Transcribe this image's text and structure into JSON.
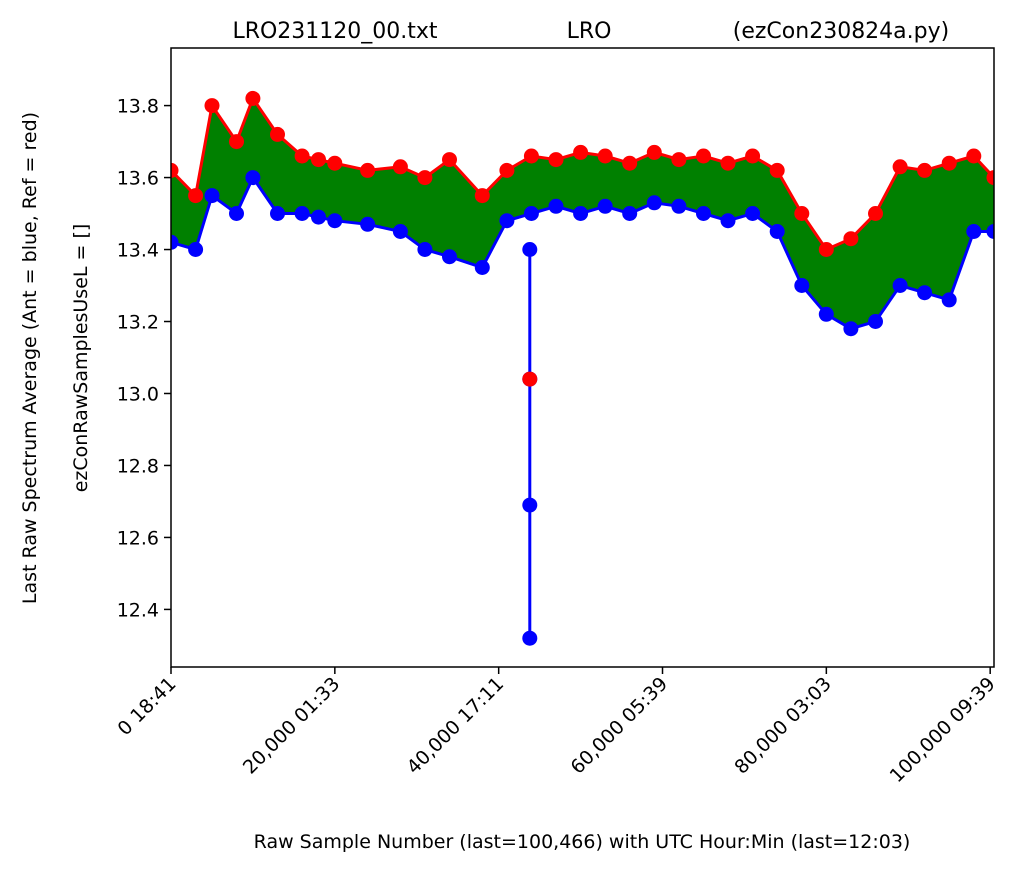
{
  "title": {
    "left": "LRO231120_00.txt",
    "center": "LRO",
    "right": "(ezCon230824a.py)"
  },
  "ylabel_outer": "Last Raw Spectrum Average   (Ant = blue, Ref = red)",
  "ylabel_inner": "ezConRawSamplesUseL = []",
  "xlabel": "Raw Sample Number (last=100,466) with UTC Hour:Min (last=12:03)",
  "colors": {
    "ant": "#0000ff",
    "ref": "#ff0000",
    "fill": "#008000"
  },
  "chart_data": {
    "type": "line",
    "xlim": [
      0,
      100466
    ],
    "ylim": [
      12.24,
      13.96
    ],
    "xticks": [
      {
        "value": 0,
        "label": "0  18:41"
      },
      {
        "value": 20000,
        "label": "20,000  01:33"
      },
      {
        "value": 40000,
        "label": "40,000  17:11"
      },
      {
        "value": 60000,
        "label": "60,000  05:39"
      },
      {
        "value": 80000,
        "label": "80,000  03:03"
      },
      {
        "value": 100000,
        "label": "100,000  09:39"
      }
    ],
    "yticks": [
      {
        "value": 12.4,
        "label": "12.4"
      },
      {
        "value": 12.6,
        "label": "12.6"
      },
      {
        "value": 12.8,
        "label": "12.8"
      },
      {
        "value": 13.0,
        "label": "13.0"
      },
      {
        "value": 13.2,
        "label": "13.2"
      },
      {
        "value": 13.4,
        "label": "13.4"
      },
      {
        "value": 13.6,
        "label": "13.6"
      },
      {
        "value": 13.8,
        "label": "13.8"
      }
    ],
    "series": [
      {
        "name": "Ref",
        "color": "#ff0000",
        "x": [
          0,
          3000,
          5000,
          8000,
          10000,
          13000,
          16000,
          18000,
          20000,
          24000,
          28000,
          31000,
          34000,
          38000,
          41000,
          44000,
          47000,
          50000,
          53000,
          56000,
          59000,
          62000,
          65000,
          68000,
          71000,
          74000,
          77000,
          80000,
          83000,
          86000,
          89000,
          92000,
          95000,
          98000,
          100466
        ],
        "y": [
          13.62,
          13.55,
          13.8,
          13.7,
          13.82,
          13.72,
          13.66,
          13.65,
          13.64,
          13.62,
          13.63,
          13.6,
          13.65,
          13.55,
          13.62,
          13.66,
          13.65,
          13.67,
          13.66,
          13.64,
          13.67,
          13.65,
          13.66,
          13.64,
          13.66,
          13.62,
          13.5,
          13.4,
          13.43,
          13.5,
          13.63,
          13.62,
          13.64,
          13.66,
          13.6
        ]
      },
      {
        "name": "Ant",
        "color": "#0000ff",
        "x": [
          0,
          3000,
          5000,
          8000,
          10000,
          13000,
          16000,
          18000,
          20000,
          24000,
          28000,
          31000,
          34000,
          38000,
          41000,
          44000,
          47000,
          50000,
          53000,
          56000,
          59000,
          62000,
          65000,
          68000,
          71000,
          74000,
          77000,
          80000,
          83000,
          86000,
          89000,
          92000,
          95000,
          98000,
          100466
        ],
        "y": [
          13.42,
          13.4,
          13.55,
          13.5,
          13.6,
          13.5,
          13.5,
          13.49,
          13.48,
          13.47,
          13.45,
          13.4,
          13.38,
          13.35,
          13.48,
          13.5,
          13.52,
          13.5,
          13.52,
          13.5,
          13.53,
          13.52,
          13.5,
          13.48,
          13.5,
          13.45,
          13.3,
          13.22,
          13.18,
          13.2,
          13.3,
          13.28,
          13.26,
          13.45,
          13.45
        ]
      },
      {
        "name": "Ant dip",
        "color": "#0000ff",
        "x": [
          43800,
          43800,
          43800,
          43800
        ],
        "y": [
          13.4,
          13.04,
          12.69,
          12.32
        ]
      },
      {
        "name": "Ref dip",
        "color": "#ff0000",
        "x": [
          43800
        ],
        "y": [
          13.04
        ]
      }
    ]
  }
}
